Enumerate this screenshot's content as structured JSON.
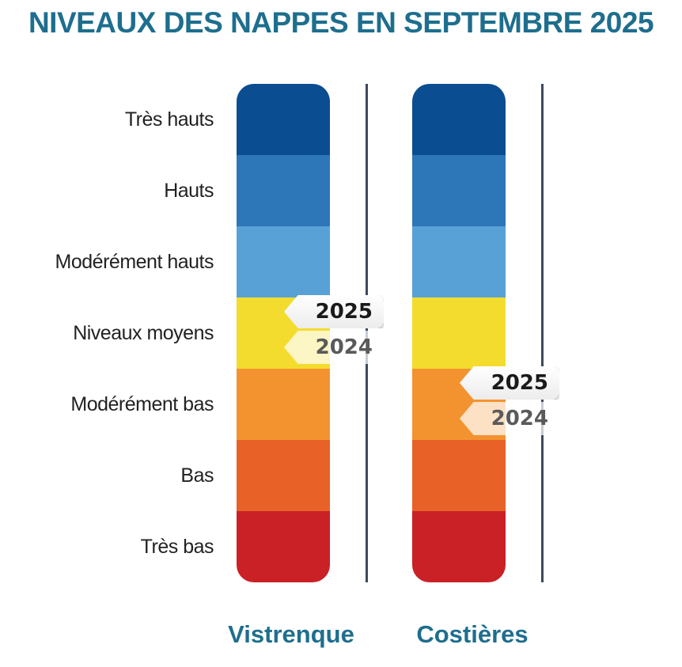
{
  "title": "NIVEAUX DES NAPPES EN SEPTEMBRE 2025",
  "chart_data": {
    "type": "table",
    "levels": [
      "Très hauts",
      "Hauts",
      "Modérément hauts",
      "Niveaux moyens",
      "Modérément bas",
      "Bas",
      "Très bas"
    ],
    "level_colors": [
      "#0b4d91",
      "#2d76b8",
      "#57a1d6",
      "#f4dc2e",
      "#f39330",
      "#e86126",
      "#c92126"
    ],
    "columns": [
      {
        "name": "Vistrenque",
        "markers": [
          {
            "year": "2025",
            "level": "Niveaux moyens",
            "position": 3.2
          },
          {
            "year": "2024",
            "level": "Niveaux moyens",
            "position": 3.7
          }
        ]
      },
      {
        "name": "Costières",
        "markers": [
          {
            "year": "2025",
            "level": "Modérément bas",
            "position": 4.2
          },
          {
            "year": "2024",
            "level": "Modérément bas",
            "position": 4.7
          }
        ]
      }
    ]
  }
}
